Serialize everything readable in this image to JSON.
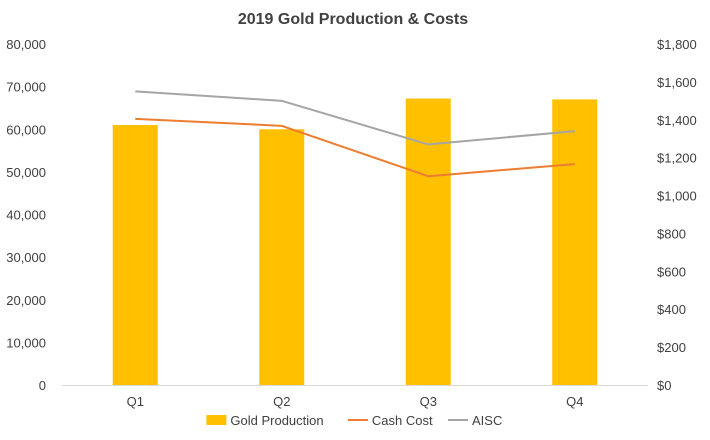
{
  "chart_data": {
    "type": "bar",
    "title": "2019 Gold Production & Costs",
    "categories": [
      "Q1",
      "Q2",
      "Q3",
      "Q4"
    ],
    "series": [
      {
        "name": "Gold Production",
        "type": "bar",
        "axis": "left",
        "color": "#FFC000",
        "values": [
          61000,
          60000,
          67200,
          67000
        ]
      },
      {
        "name": "Cash Cost",
        "type": "line",
        "axis": "right",
        "color": "#ED7D31",
        "values": [
          1405,
          1368,
          1102,
          1166
        ]
      },
      {
        "name": "AISC",
        "type": "line",
        "axis": "right",
        "color": "#A5A5A5",
        "values": [
          1550,
          1500,
          1270,
          1340
        ]
      }
    ],
    "y_left": {
      "range": [
        0,
        80000
      ],
      "ticks": [
        "0",
        "10,000",
        "20,000",
        "30,000",
        "40,000",
        "50,000",
        "60,000",
        "70,000",
        "80,000"
      ]
    },
    "y_right": {
      "range": [
        0,
        1800
      ],
      "ticks": [
        "$0",
        "$200",
        "$400",
        "$600",
        "$800",
        "$1,000",
        "$1,200",
        "$1,400",
        "$1,600",
        "$1,800"
      ]
    },
    "grid": false,
    "legend": "bottom"
  }
}
